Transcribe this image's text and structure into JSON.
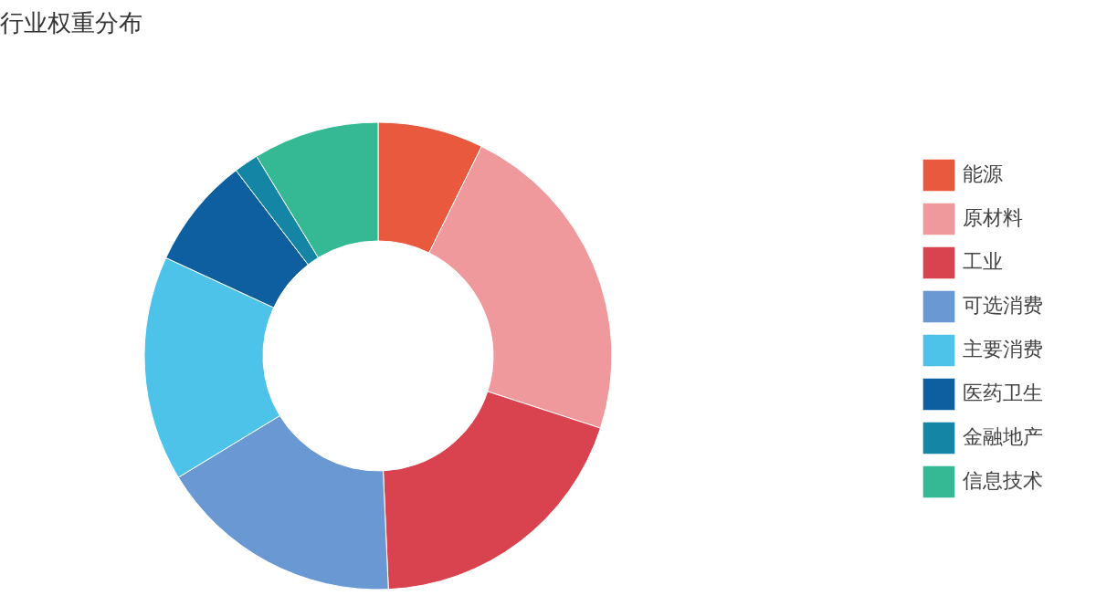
{
  "chart_data": {
    "type": "donut",
    "title": "行业权重分布",
    "categories": [
      "能源",
      "原材料",
      "工业",
      "可选消费",
      "主要消费",
      "医药卫生",
      "金融地产",
      "信息技术"
    ],
    "values": [
      7.3,
      22.7,
      19.3,
      17.0,
      15.6,
      7.7,
      1.7,
      8.7
    ],
    "colors": [
      "#e8593e",
      "#f0999c",
      "#d9434f",
      "#6a98d3",
      "#4dc3ea",
      "#0d5fa0",
      "#1585a5",
      "#35b995"
    ],
    "legend": "right"
  }
}
